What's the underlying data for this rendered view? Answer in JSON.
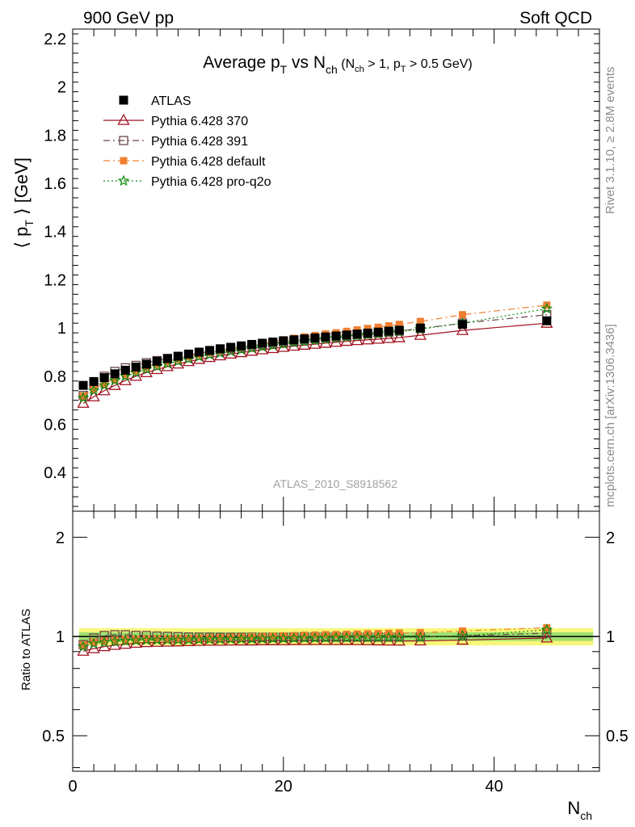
{
  "header": {
    "left": "900 GeV pp",
    "right": "Soft QCD"
  },
  "side_text": {
    "rivet": "Rivet 3.1.10, ≥ 2.8M events",
    "mcplots": "mcplots.cern.ch [arXiv:1306.3436]"
  },
  "colors": {
    "atlas": "#000000",
    "p370": "#a0101f",
    "p391": "#6b4646",
    "pdefault": "#f07f30",
    "pq2o": "#108c10",
    "band_inner": "#9ee06e",
    "band_outer": "#f7f77a"
  },
  "chart_data": [
    {
      "type": "scatter",
      "title": {
        "pre": "Average p",
        "pre_sub": "T",
        "mid": " vs N",
        "mid_sub": "ch",
        "cond_a": " (N",
        "cond_a_sub": "ch",
        "cond_b": " > 1, p",
        "cond_b_sub": "T",
        "cond_c": " > 0.5 GeV)"
      },
      "ylabel": {
        "open": "⟨ p",
        "sub": "T",
        "close": " ⟩  [GeV]"
      },
      "watermark": "ATLAS_2010_S8918562",
      "xlim": [
        0,
        50
      ],
      "ylim": [
        0.24,
        2.24
      ],
      "yticks": [
        0.4,
        0.6,
        0.8,
        1,
        1.2,
        1.4,
        1.6,
        1.8,
        2,
        2.2
      ],
      "ytick_labels": [
        "0.4",
        "0.6",
        "0.8",
        "1",
        "1.2",
        "1.4",
        "1.6",
        "1.8",
        "2",
        "2.2"
      ],
      "x": [
        1,
        2,
        3,
        4,
        5,
        6,
        7,
        8,
        9,
        10,
        11,
        12,
        13,
        14,
        15,
        16,
        17,
        18,
        19,
        20,
        21,
        22,
        23,
        24,
        25,
        26,
        27,
        28,
        29,
        30,
        31,
        33,
        37,
        45
      ],
      "series": [
        {
          "name": "ATLAS",
          "key": "atlas",
          "y": [
            0.762,
            0.778,
            0.794,
            0.81,
            0.825,
            0.838,
            0.85,
            0.862,
            0.873,
            0.883,
            0.892,
            0.9,
            0.907,
            0.914,
            0.92,
            0.926,
            0.932,
            0.937,
            0.942,
            0.947,
            0.951,
            0.955,
            0.959,
            0.963,
            0.967,
            0.971,
            0.975,
            0.979,
            0.983,
            0.987,
            0.991,
            1.0,
            1.015,
            1.03
          ]
        },
        {
          "name": "Pythia 6.428 370",
          "key": "p370",
          "y": [
            0.688,
            0.715,
            0.74,
            0.762,
            0.782,
            0.8,
            0.815,
            0.828,
            0.84,
            0.851,
            0.861,
            0.87,
            0.878,
            0.885,
            0.892,
            0.898,
            0.904,
            0.91,
            0.915,
            0.92,
            0.925,
            0.929,
            0.933,
            0.937,
            0.941,
            0.945,
            0.948,
            0.951,
            0.954,
            0.957,
            0.96,
            0.97,
            0.99,
            1.02
          ]
        },
        {
          "name": "Pythia 6.428 391",
          "key": "p391",
          "y": [
            0.72,
            0.77,
            0.8,
            0.82,
            0.835,
            0.845,
            0.856,
            0.865,
            0.874,
            0.882,
            0.889,
            0.896,
            0.903,
            0.909,
            0.915,
            0.921,
            0.927,
            0.932,
            0.937,
            0.942,
            0.947,
            0.951,
            0.955,
            0.959,
            0.963,
            0.967,
            0.971,
            0.975,
            0.979,
            0.983,
            0.987,
            0.998,
            1.02,
            1.055
          ]
        },
        {
          "name": "Pythia 6.428 default",
          "key": "pdefault",
          "y": [
            0.718,
            0.748,
            0.77,
            0.79,
            0.808,
            0.823,
            0.837,
            0.849,
            0.86,
            0.871,
            0.881,
            0.89,
            0.899,
            0.907,
            0.915,
            0.922,
            0.93,
            0.937,
            0.944,
            0.951,
            0.957,
            0.963,
            0.969,
            0.975,
            0.98,
            0.986,
            0.992,
            0.998,
            1.003,
            1.009,
            1.015,
            1.027,
            1.055,
            1.095
          ]
        },
        {
          "name": "Pythia 6.428 pro-q2o",
          "key": "pq2o",
          "y": [
            0.71,
            0.74,
            0.762,
            0.782,
            0.8,
            0.815,
            0.829,
            0.841,
            0.852,
            0.862,
            0.872,
            0.881,
            0.889,
            0.896,
            0.903,
            0.91,
            0.916,
            0.922,
            0.928,
            0.934,
            0.939,
            0.944,
            0.949,
            0.954,
            0.959,
            0.963,
            0.968,
            0.972,
            0.976,
            0.981,
            0.985,
            0.995,
            1.02,
            1.08
          ]
        }
      ]
    },
    {
      "type": "scatter",
      "ylabel": "Ratio to ATLAS",
      "xlabel": {
        "main": "N",
        "sub": "ch"
      },
      "scale": "log",
      "xlim": [
        0,
        50
      ],
      "ylim": [
        0.39,
        2.4
      ],
      "xticks": [
        0,
        20,
        40
      ],
      "xtick_labels": [
        "0",
        "20",
        "40"
      ],
      "yticks": [
        0.5,
        1,
        2
      ],
      "ytick_labels": [
        "0.5",
        "1",
        "2"
      ],
      "band_inner_halfwidth": 0.03,
      "band_outer_halfwidth": 0.06
    }
  ]
}
